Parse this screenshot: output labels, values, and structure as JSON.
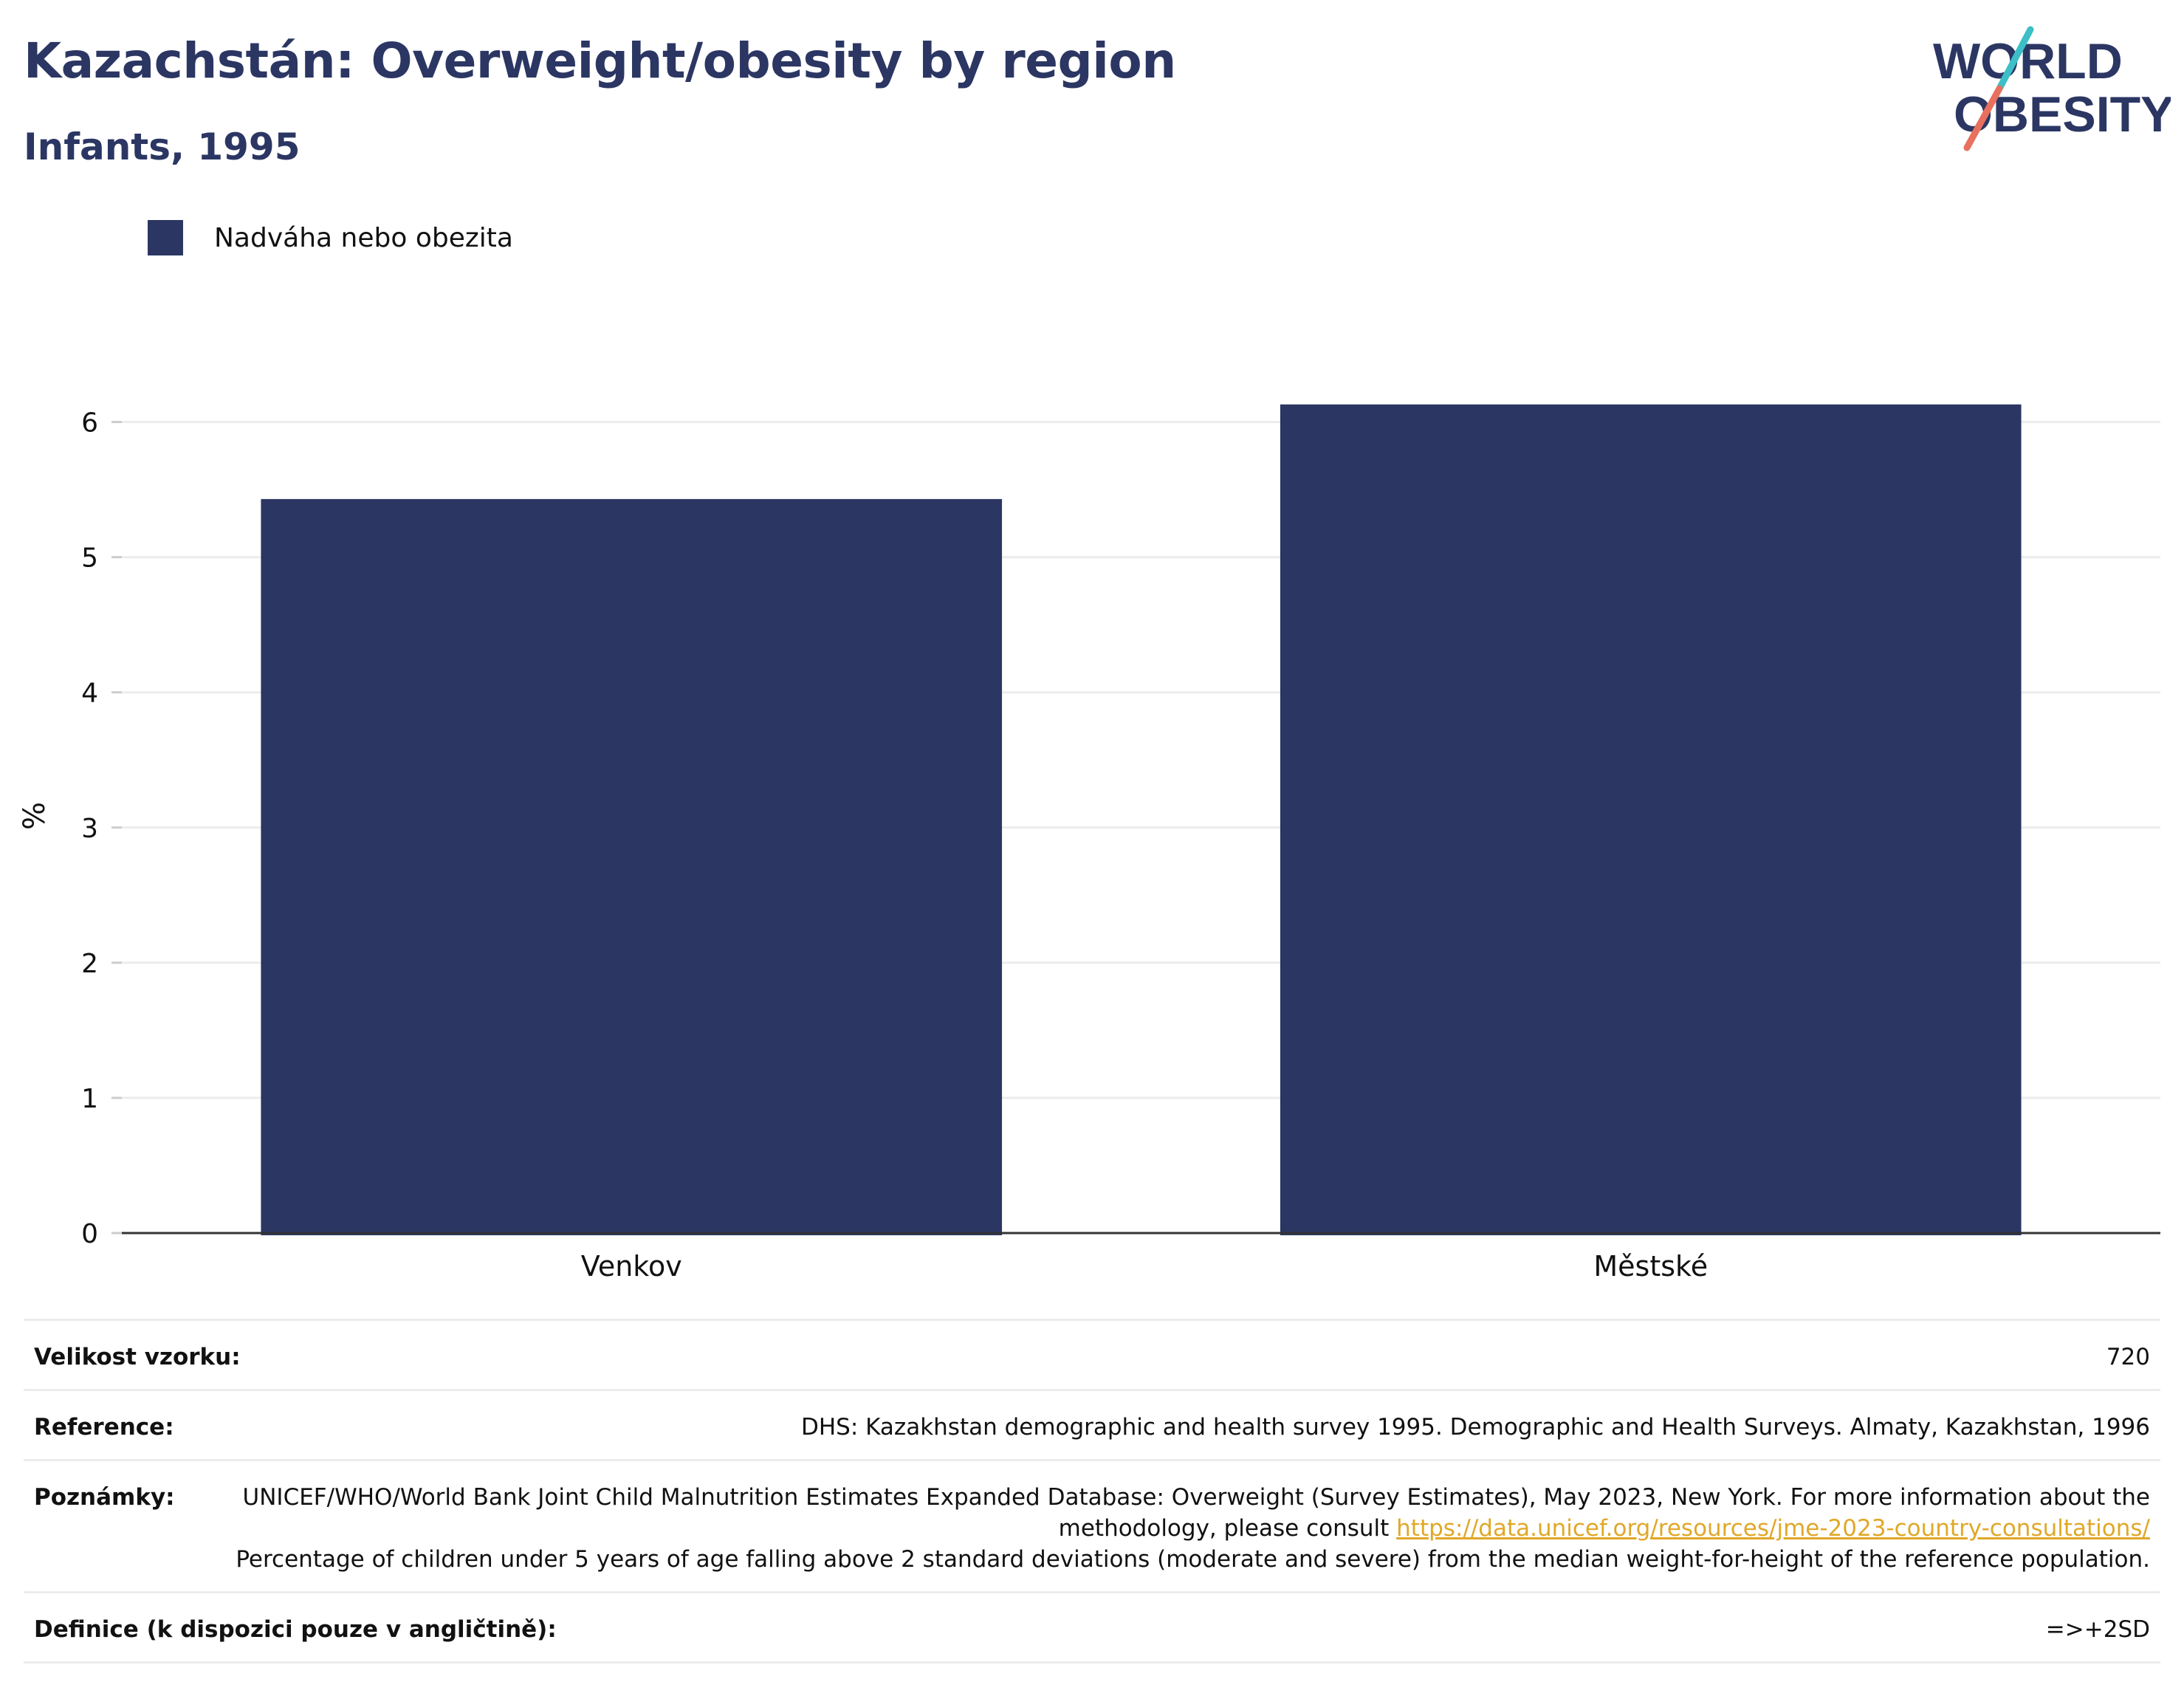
{
  "header": {
    "title": "Kazachstán: Overweight/obesity by region",
    "subtitle": "Infants, 1995"
  },
  "logo": {
    "line1": "WORLD",
    "line2": "OBESITY"
  },
  "legend": {
    "label": "Nadváha nebo obezita",
    "color": "#2b3663"
  },
  "chart_data": {
    "type": "bar",
    "categories": [
      "Venkov",
      "Městské"
    ],
    "series": [
      {
        "name": "Nadváha nebo obezita",
        "values": [
          5.43,
          6.13
        ],
        "color": "#2b3663"
      }
    ],
    "ylabel": "%",
    "ylim": [
      0,
      6.5
    ],
    "yticks": [
      0,
      1,
      2,
      3,
      4,
      5,
      6
    ],
    "grid": true,
    "legend_position": "top-left"
  },
  "meta": {
    "sample_size": {
      "label": "Velikost vzorku:",
      "value": "720"
    },
    "reference": {
      "label": "Reference:",
      "value": "DHS: Kazakhstan demographic and health survey 1995. Demographic and Health Surveys. Almaty, Kazakhstan, 1996"
    },
    "notes": {
      "label": "Poznámky:",
      "text1": "UNICEF/WHO/World Bank Joint Child Malnutrition Estimates Expanded Database: Overweight (Survey Estimates), May 2023, New York. For more information about the methodology, please consult",
      "link": "https://data.unicef.org/resources/jme-2023-country-consultations/",
      "text2": "Percentage of children under 5 years of age falling above 2 standard deviations (moderate and severe) from the median weight-for-height of the reference population."
    },
    "definition": {
      "label": "Definice (k dispozici pouze v angličtině):",
      "value": "=>+2SD"
    }
  },
  "colors": {
    "title": "#2b3663",
    "bar": "#2b3663",
    "logo_teal": "#3cbfc6",
    "logo_coral": "#e8705e",
    "link": "#e0a828"
  }
}
